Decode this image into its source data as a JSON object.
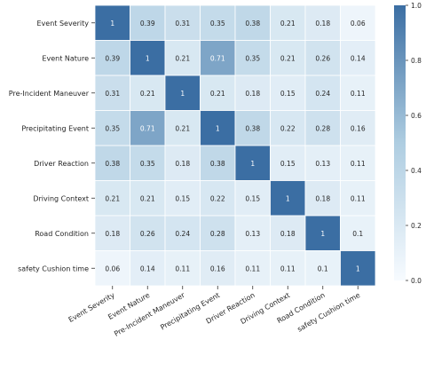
{
  "chart_data": {
    "type": "heatmap",
    "rows": [
      "Event Severity",
      "Event Nature",
      "Pre-Incident Maneuver",
      "Precipitating Event",
      "Driver Reaction",
      "Driving Context",
      "Road Condition",
      "safety Cushion time"
    ],
    "columns": [
      "Event Severity",
      "Event Nature",
      "Pre-Incident Maneuver",
      "Precipitating Event",
      "Driver Reaction",
      "Driving Context",
      "Road Condition",
      "safety Cushion time"
    ],
    "values": [
      [
        1,
        0.39,
        0.31,
        0.35,
        0.38,
        0.21,
        0.18,
        0.06
      ],
      [
        0.39,
        1,
        0.21,
        0.71,
        0.35,
        0.21,
        0.26,
        0.14
      ],
      [
        0.31,
        0.21,
        1,
        0.21,
        0.18,
        0.15,
        0.24,
        0.11
      ],
      [
        0.35,
        0.71,
        0.21,
        1,
        0.38,
        0.22,
        0.28,
        0.16
      ],
      [
        0.38,
        0.35,
        0.18,
        0.38,
        1,
        0.15,
        0.13,
        0.11
      ],
      [
        0.21,
        0.21,
        0.15,
        0.22,
        0.15,
        1,
        0.18,
        0.11
      ],
      [
        0.18,
        0.26,
        0.24,
        0.28,
        0.13,
        0.18,
        1,
        0.1
      ],
      [
        0.06,
        0.14,
        0.11,
        0.16,
        0.11,
        0.11,
        0.1,
        1
      ]
    ],
    "cell_labels": [
      [
        "1",
        "0.39",
        "0.31",
        "0.35",
        "0.38",
        "0.21",
        "0.18",
        "0.06"
      ],
      [
        "0.39",
        "1",
        "0.21",
        "0.71",
        "0.35",
        "0.21",
        "0.26",
        "0.14"
      ],
      [
        "0.31",
        "0.21",
        "1",
        "0.21",
        "0.18",
        "0.15",
        "0.24",
        "0.11"
      ],
      [
        "0.35",
        "0.71",
        "0.21",
        "1",
        "0.38",
        "0.22",
        "0.28",
        "0.16"
      ],
      [
        "0.38",
        "0.35",
        "0.18",
        "0.38",
        "1",
        "0.15",
        "0.13",
        "0.11"
      ],
      [
        "0.21",
        "0.21",
        "0.15",
        "0.22",
        "0.15",
        "1",
        "0.18",
        "0.11"
      ],
      [
        "0.18",
        "0.26",
        "0.24",
        "0.28",
        "0.13",
        "0.18",
        "1",
        "0.1"
      ],
      [
        "0.06",
        "0.14",
        "0.11",
        "0.16",
        "0.11",
        "0.11",
        "0.1",
        "1"
      ]
    ],
    "colorbar": {
      "min": 0,
      "max": 1,
      "ticks": [
        "0.0",
        "0.2",
        "0.4",
        "0.6",
        "0.8",
        "1.0"
      ]
    },
    "colors": {
      "low": "#f7fbff",
      "mid": "#aecde1",
      "high": "#3b6ea3"
    },
    "grid": false,
    "title": "",
    "xlabel": "",
    "ylabel": ""
  }
}
